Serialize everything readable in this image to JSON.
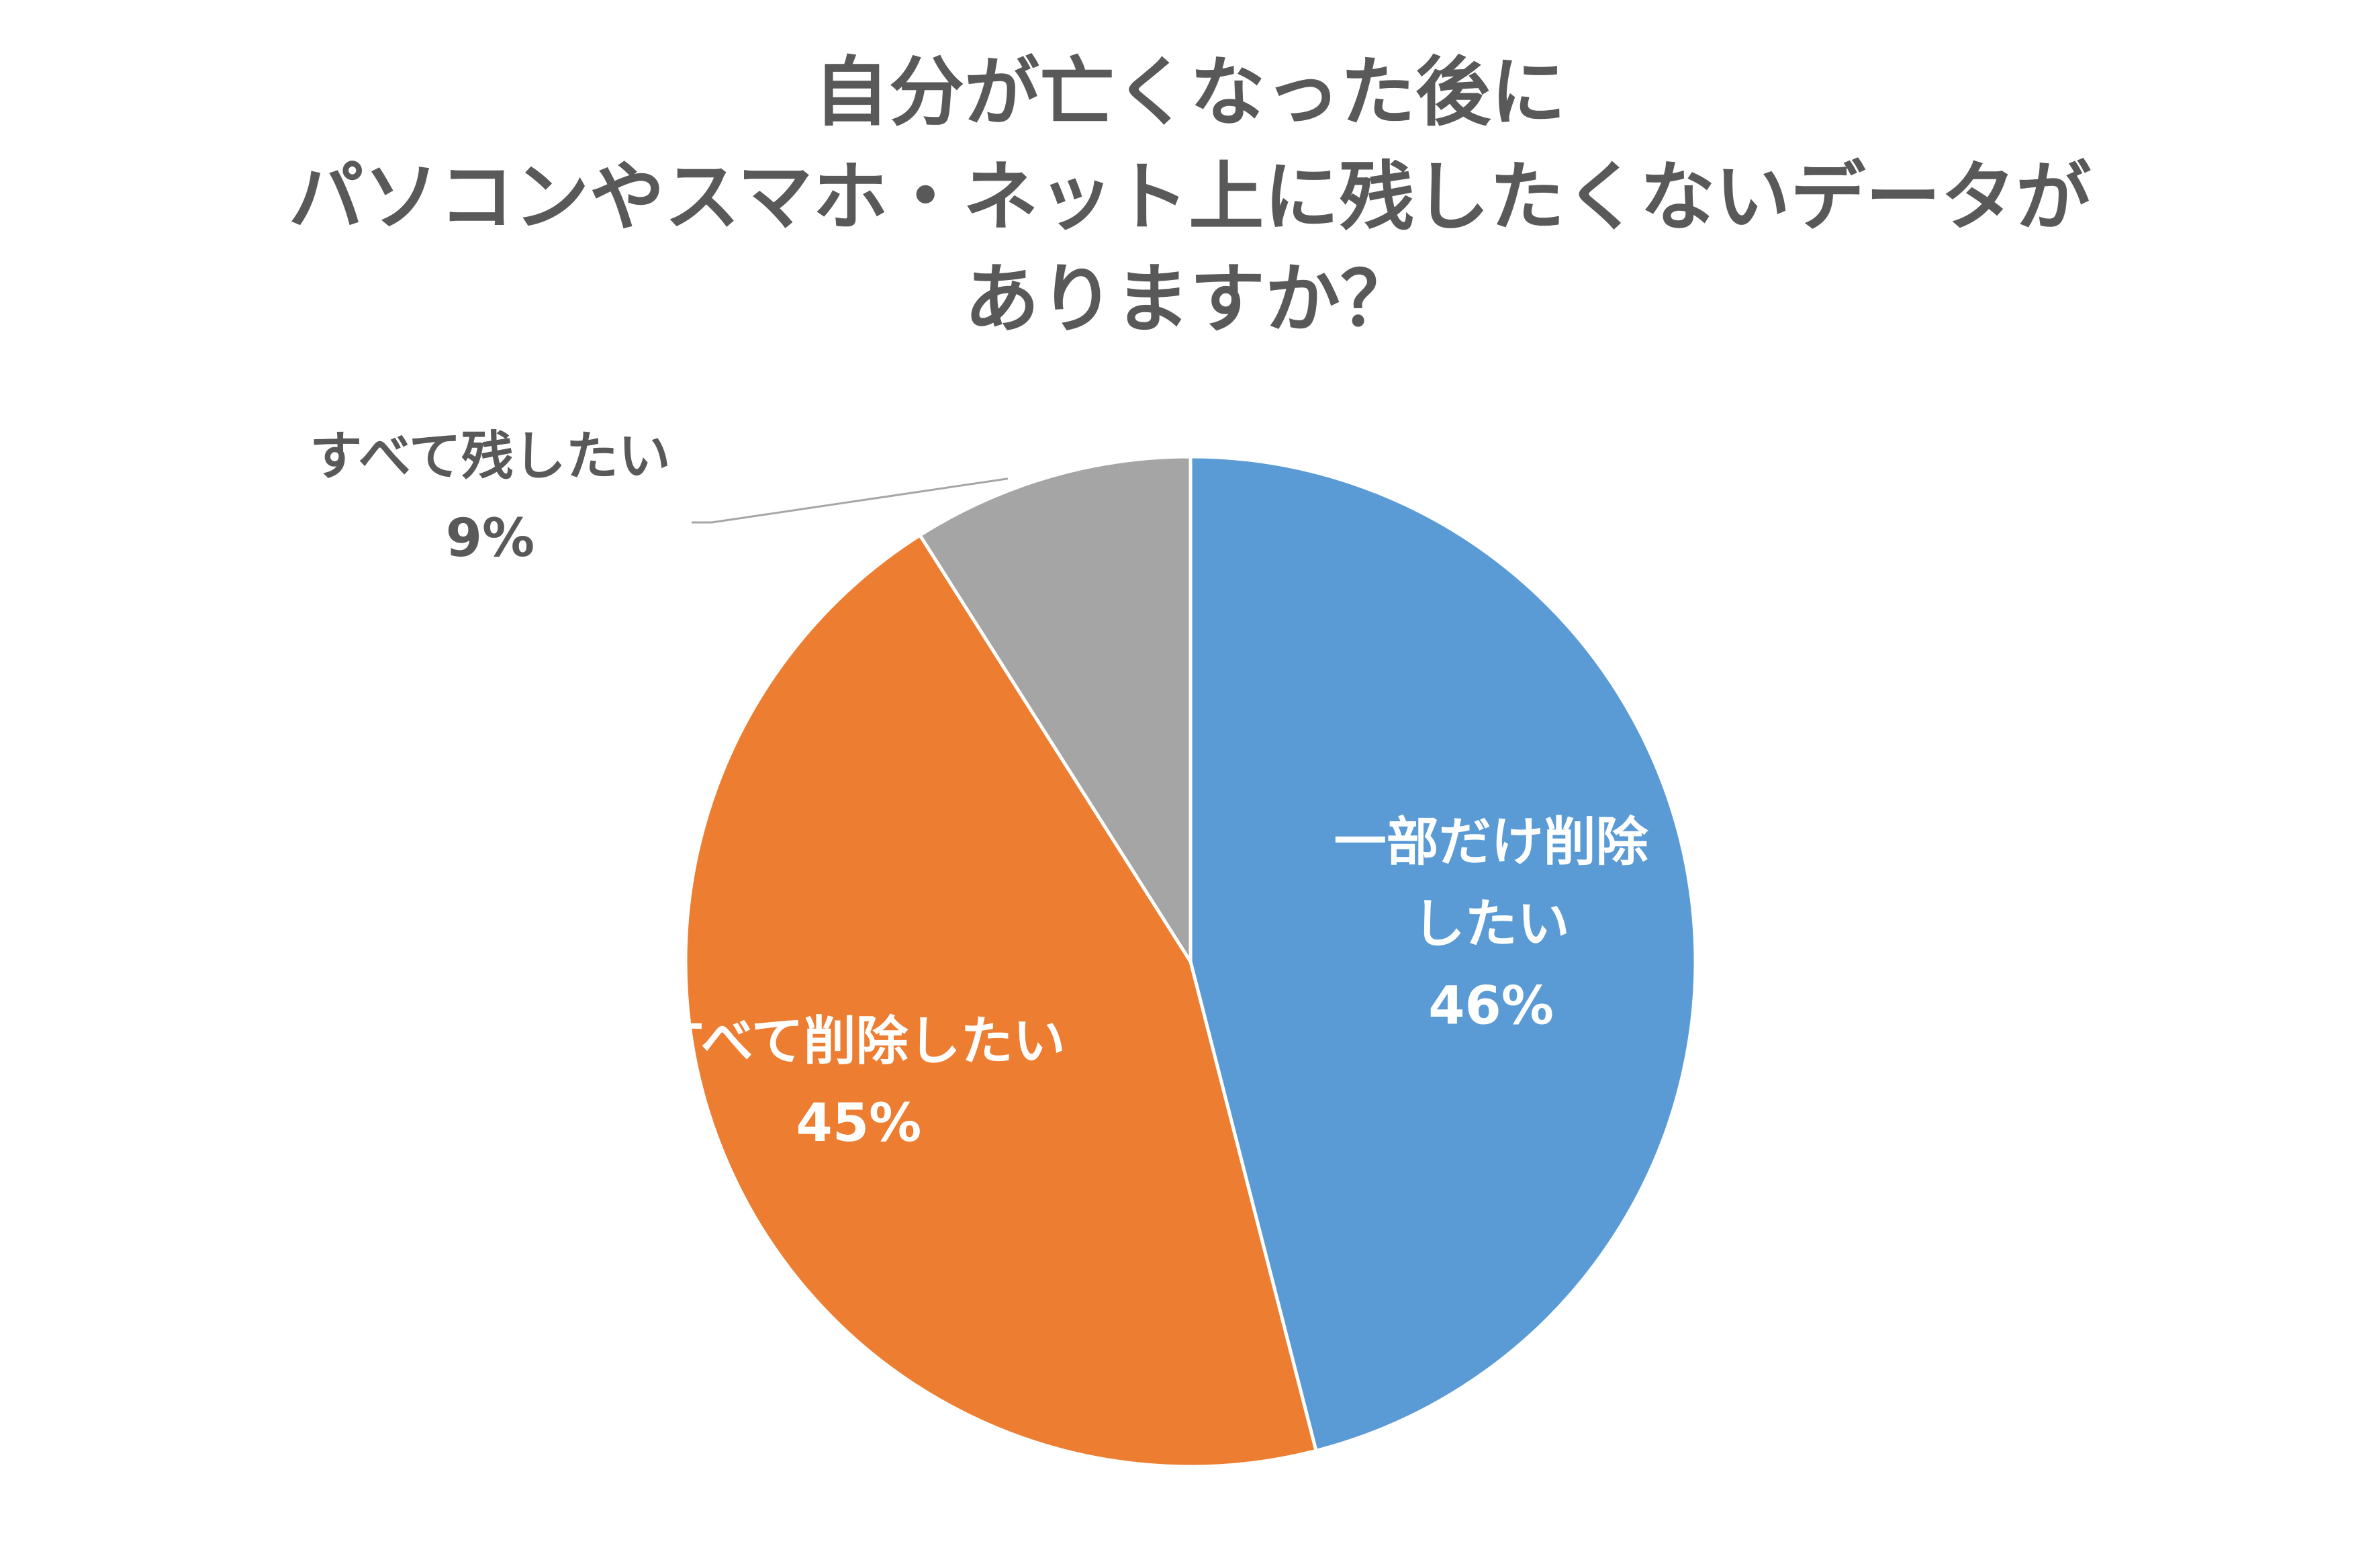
{
  "chart_data": {
    "type": "pie",
    "title_lines": [
      "自分が亡くなった後に",
      "パソコンやスマホ・ネット上に残したくないデータが",
      "ありますか？"
    ],
    "start_angle_deg": 0,
    "direction": "clockwise",
    "slices": [
      {
        "label_lines": [
          "一部だけ削除",
          "したい"
        ],
        "value": 46,
        "value_label": "46%",
        "color": "#5B9BD5"
      },
      {
        "label_lines": [
          "すべて削除したい"
        ],
        "value": 45,
        "value_label": "45%",
        "color": "#ED7D31"
      },
      {
        "label_lines": [
          "すべて残したい"
        ],
        "value": 9,
        "value_label": "9%",
        "color": "#A5A5A5"
      }
    ],
    "slice_border_color": "#FFFFFF",
    "legend": "none",
    "label_text_colors": {
      "inside": "#FFFFFF",
      "outside": "#595959"
    },
    "leader_line_color": "#A6A6A6"
  }
}
